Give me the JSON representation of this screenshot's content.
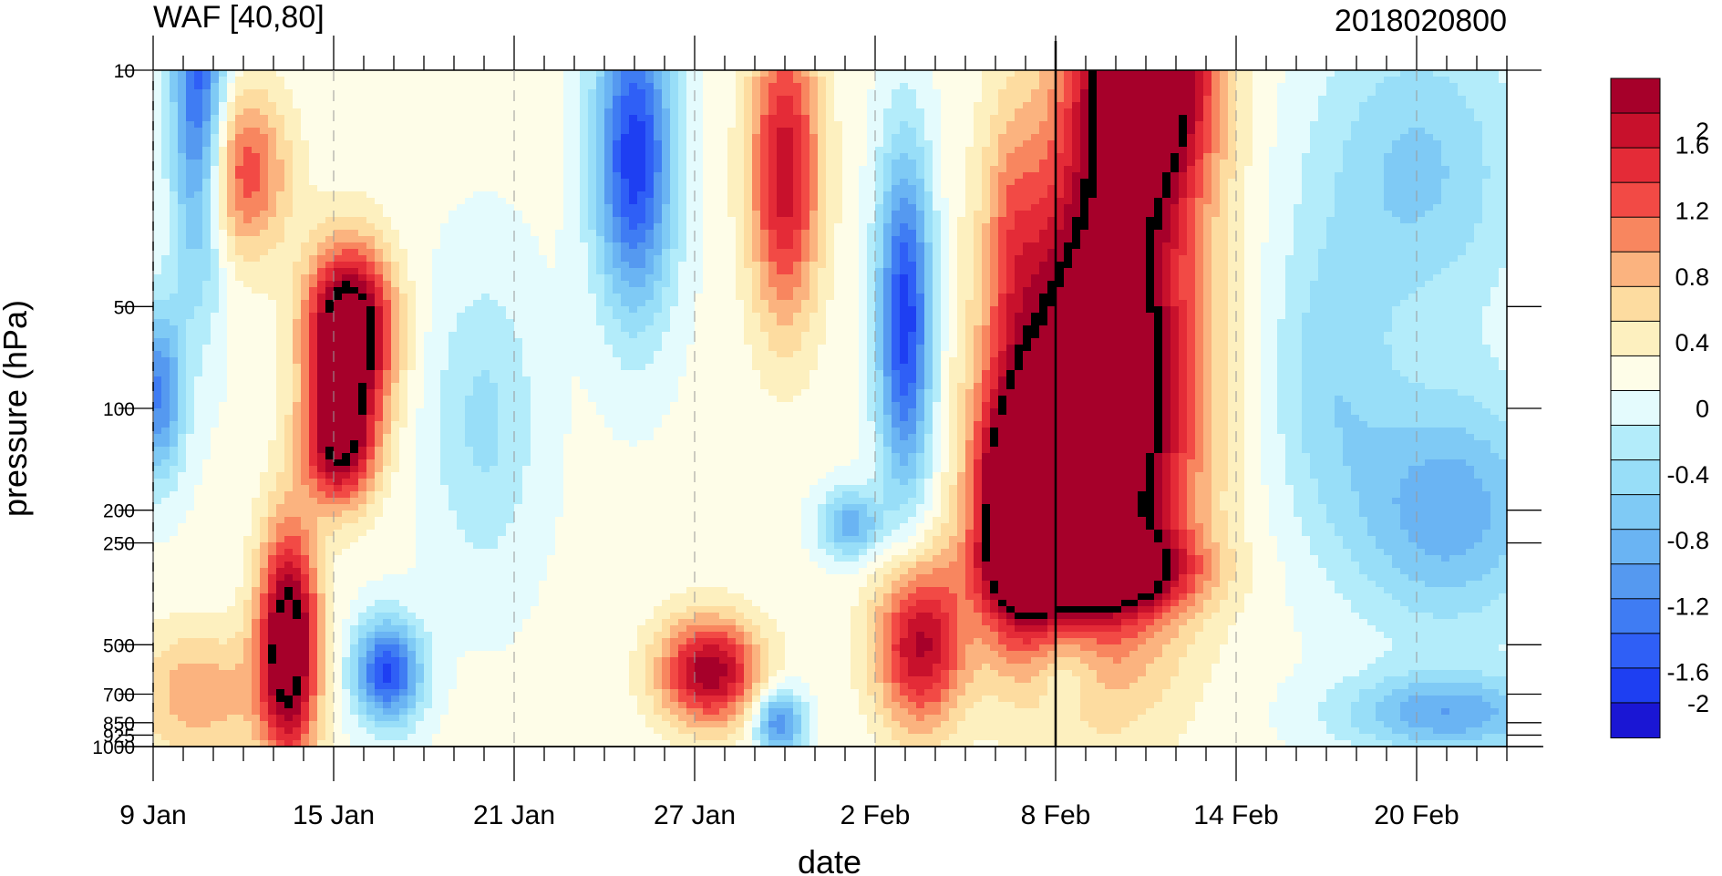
{
  "chart_data": {
    "type": "heatmap",
    "title": "WAF [40,80]",
    "subtitle": "2018020800",
    "xlabel": "date",
    "ylabel": "pressure (hPa)",
    "x_tick_labels": [
      "9 Jan",
      "15 Jan",
      "21 Jan",
      "27 Jan",
      "2 Feb",
      "8 Feb",
      "14 Feb",
      "20 Feb"
    ],
    "x_range_days": [
      0,
      45
    ],
    "x_tick_day_offsets": [
      0,
      6,
      12,
      18,
      24,
      30,
      36,
      42
    ],
    "marked_date_day_offset": 30,
    "y_levels_hPa": [
      10,
      50,
      100,
      200,
      250,
      500,
      700,
      850,
      925,
      1000
    ],
    "y_tick_labels": [
      "10",
      "50",
      "100",
      "200",
      "250",
      "500",
      "700",
      "850",
      "925",
      "1000"
    ],
    "y_scale": "log",
    "colorbar": {
      "levels": [
        -2,
        -1.8,
        -1.6,
        -1.4,
        -1.2,
        -1,
        -0.8,
        -0.6,
        -0.4,
        -0.2,
        0,
        0.2,
        0.4,
        0.6,
        0.8,
        1,
        1.2,
        1.4,
        1.6,
        1.8,
        2
      ],
      "colors": [
        "#1a16d4",
        "#1e3ff2",
        "#2f5ff6",
        "#3f7cf3",
        "#5599f0",
        "#6ab4f3",
        "#7fcaf5",
        "#98def8",
        "#b3ecfa",
        "#e4fbfd",
        "#fefde8",
        "#fdf0bf",
        "#fddca0",
        "#fbb37f",
        "#f8865f",
        "#f24a45",
        "#e42b37",
        "#c8112c",
        "#a6002a"
      ],
      "tick_labels": [
        "2",
        "1.6",
        "1.2",
        "0.8",
        "0.4",
        "0",
        "-0.4",
        "-0.8",
        "-1.2",
        "-1.6",
        "-2"
      ],
      "tick_values": [
        2,
        1.6,
        1.2,
        0.8,
        0.4,
        0,
        -0.4,
        -0.8,
        -1.2,
        -1.6,
        -2
      ]
    },
    "features": [
      {
        "day": 1.5,
        "level": 12,
        "value": -1.6,
        "dx": 0.9,
        "dy": 0.55
      },
      {
        "day": 0.2,
        "level": 90,
        "value": -1.3,
        "dx": 0.8,
        "dy": 0.25
      },
      {
        "day": 6.2,
        "level": 130,
        "value": 1.7,
        "dx": 1.2,
        "dy": 0.18
      },
      {
        "day": 6.5,
        "level": 60,
        "value": 2.5,
        "dx": 1.4,
        "dy": 0.25
      },
      {
        "day": 4.5,
        "level": 500,
        "value": 2.2,
        "dx": 1.0,
        "dy": 0.35
      },
      {
        "day": 7.8,
        "level": 600,
        "value": -1.7,
        "dx": 1.1,
        "dy": 0.15
      },
      {
        "day": 1.5,
        "level": 700,
        "value": 0.7,
        "dx": 2.2,
        "dy": 0.2
      },
      {
        "day": 3.0,
        "level": 20,
        "value": 1.1,
        "dx": 1.5,
        "dy": 0.25
      },
      {
        "day": 11.0,
        "level": 110,
        "value": -0.5,
        "dx": 1.8,
        "dy": 0.45
      },
      {
        "day": 16.0,
        "level": 18,
        "value": -1.8,
        "dx": 1.3,
        "dy": 0.45
      },
      {
        "day": 18.5,
        "level": 600,
        "value": 1.7,
        "dx": 1.7,
        "dy": 0.16
      },
      {
        "day": 21.0,
        "level": 20,
        "value": 1.5,
        "dx": 1.2,
        "dy": 0.45
      },
      {
        "day": 20.8,
        "level": 850,
        "value": -1.3,
        "dx": 0.8,
        "dy": 0.1
      },
      {
        "day": 25.0,
        "level": 55,
        "value": -1.8,
        "dx": 0.9,
        "dy": 0.5
      },
      {
        "day": 23.2,
        "level": 220,
        "value": -1.0,
        "dx": 1.0,
        "dy": 0.1
      },
      {
        "day": 25.5,
        "level": 500,
        "value": 1.6,
        "dx": 1.5,
        "dy": 0.25
      },
      {
        "day": 28.5,
        "level": 30,
        "value": 0.5,
        "dx": 0.9,
        "dy": 0.4
      },
      {
        "day": 31.5,
        "level": 90,
        "value": 2.8,
        "dx": 3.0,
        "dy": 0.7
      },
      {
        "day": 28.8,
        "level": 200,
        "value": 2.4,
        "dx": 1.4,
        "dy": 0.35
      },
      {
        "day": 31.5,
        "level": 300,
        "value": 1.6,
        "dx": 3.0,
        "dy": 0.12
      },
      {
        "day": 30.3,
        "level": 600,
        "value": -0.4,
        "dx": 1.0,
        "dy": 0.12
      },
      {
        "day": 33.0,
        "level": 10,
        "value": 2.5,
        "dx": 2.2,
        "dy": 0.4
      },
      {
        "day": 43.0,
        "level": 200,
        "value": -1.0,
        "dx": 3.5,
        "dy": 0.35
      },
      {
        "day": 43.0,
        "level": 800,
        "value": -1.0,
        "dx": 3.5,
        "dy": 0.12
      },
      {
        "day": 42.0,
        "level": 20,
        "value": -0.7,
        "dx": 3.5,
        "dy": 0.45
      },
      {
        "day": 39.0,
        "level": 80,
        "value": -0.5,
        "dx": 2.0,
        "dy": 0.4
      }
    ]
  }
}
